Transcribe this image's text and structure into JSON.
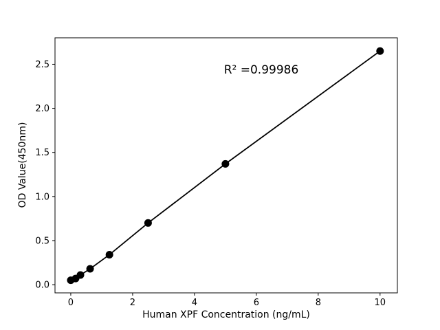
{
  "chart_data": {
    "type": "scatter",
    "title": "",
    "xlabel": "Human XPF Concentration (ng/mL)",
    "ylabel": "OD Value(450nm)",
    "x": [
      0,
      0.156,
      0.3125,
      0.625,
      1.25,
      2.5,
      5,
      10
    ],
    "y": [
      0.05,
      0.07,
      0.11,
      0.18,
      0.34,
      0.7,
      1.37,
      2.65
    ],
    "line_through_points": true,
    "xlim": [
      -0.51,
      10.56
    ],
    "ylim": [
      -0.093,
      2.8
    ],
    "xticks": [
      0,
      2,
      4,
      6,
      8,
      10
    ],
    "xtick_labels": [
      "0",
      "2",
      "4",
      "6",
      "8",
      "10"
    ],
    "yticks": [
      0.0,
      0.5,
      1.0,
      1.5,
      2.0,
      2.5
    ],
    "ytick_labels": [
      "0.0",
      "0.5",
      "1.0",
      "1.5",
      "2.0",
      "2.5"
    ],
    "annotation": {
      "text": "R² =0.99986"
    },
    "grid": false,
    "legend": null,
    "marker_color": "#000000",
    "line_color": "#000000",
    "spine_color": "#000000",
    "background_color": "#ffffff"
  }
}
